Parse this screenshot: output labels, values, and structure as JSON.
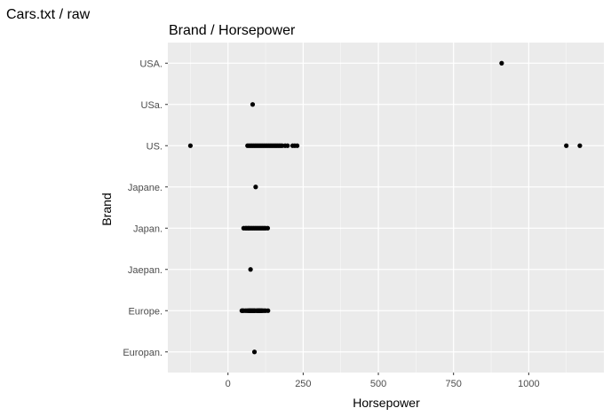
{
  "page": {
    "title": "Cars.txt / raw"
  },
  "chart_data": {
    "type": "scatter",
    "title": "Brand / Horsepower",
    "xlabel": "Horsepower",
    "ylabel": "Brand",
    "xlim": [
      -200,
      1250
    ],
    "x_ticks": [
      0,
      250,
      500,
      750,
      1000
    ],
    "x_tick_labels": [
      "0",
      "250",
      "500",
      "750",
      "1000"
    ],
    "categories": [
      "Europan.",
      "Europe.",
      "Jaepan.",
      "Japan.",
      "Japane.",
      "US.",
      "USa.",
      "USA."
    ],
    "grid": true,
    "points": [
      {
        "brand": "USA.",
        "x": 910
      },
      {
        "brand": "USa.",
        "x": 82
      },
      {
        "brand": "US.",
        "x": -125
      },
      {
        "brand": "US.",
        "x": 65
      },
      {
        "brand": "US.",
        "x": 70
      },
      {
        "brand": "US.",
        "x": 75
      },
      {
        "brand": "US.",
        "x": 80
      },
      {
        "brand": "US.",
        "x": 85
      },
      {
        "brand": "US.",
        "x": 90
      },
      {
        "brand": "US.",
        "x": 95
      },
      {
        "brand": "US.",
        "x": 100
      },
      {
        "brand": "US.",
        "x": 105
      },
      {
        "brand": "US.",
        "x": 110
      },
      {
        "brand": "US.",
        "x": 115
      },
      {
        "brand": "US.",
        "x": 120
      },
      {
        "brand": "US.",
        "x": 125
      },
      {
        "brand": "US.",
        "x": 130
      },
      {
        "brand": "US.",
        "x": 135
      },
      {
        "brand": "US.",
        "x": 140
      },
      {
        "brand": "US.",
        "x": 145
      },
      {
        "brand": "US.",
        "x": 150
      },
      {
        "brand": "US.",
        "x": 155
      },
      {
        "brand": "US.",
        "x": 160
      },
      {
        "brand": "US.",
        "x": 165
      },
      {
        "brand": "US.",
        "x": 170
      },
      {
        "brand": "US.",
        "x": 175
      },
      {
        "brand": "US.",
        "x": 180
      },
      {
        "brand": "US.",
        "x": 190
      },
      {
        "brand": "US.",
        "x": 198
      },
      {
        "brand": "US.",
        "x": 215
      },
      {
        "brand": "US.",
        "x": 222
      },
      {
        "brand": "US.",
        "x": 230
      },
      {
        "brand": "US.",
        "x": 1125
      },
      {
        "brand": "US.",
        "x": 1170
      },
      {
        "brand": "Japane.",
        "x": 92
      },
      {
        "brand": "Japan.",
        "x": 52
      },
      {
        "brand": "Japan.",
        "x": 58
      },
      {
        "brand": "Japan.",
        "x": 62
      },
      {
        "brand": "Japan.",
        "x": 67
      },
      {
        "brand": "Japan.",
        "x": 70
      },
      {
        "brand": "Japan.",
        "x": 75
      },
      {
        "brand": "Japan.",
        "x": 80
      },
      {
        "brand": "Japan.",
        "x": 85
      },
      {
        "brand": "Japan.",
        "x": 90
      },
      {
        "brand": "Japan.",
        "x": 95
      },
      {
        "brand": "Japan.",
        "x": 100
      },
      {
        "brand": "Japan.",
        "x": 105
      },
      {
        "brand": "Japan.",
        "x": 110
      },
      {
        "brand": "Japan.",
        "x": 115
      },
      {
        "brand": "Japan.",
        "x": 120
      },
      {
        "brand": "Japan.",
        "x": 125
      },
      {
        "brand": "Japan.",
        "x": 132
      },
      {
        "brand": "Jaepan.",
        "x": 75
      },
      {
        "brand": "Europe.",
        "x": 46
      },
      {
        "brand": "Europe.",
        "x": 48
      },
      {
        "brand": "Europe.",
        "x": 52
      },
      {
        "brand": "Europe.",
        "x": 58
      },
      {
        "brand": "Europe.",
        "x": 63
      },
      {
        "brand": "Europe.",
        "x": 67
      },
      {
        "brand": "Europe.",
        "x": 70
      },
      {
        "brand": "Europe.",
        "x": 71
      },
      {
        "brand": "Europe.",
        "x": 74
      },
      {
        "brand": "Europe.",
        "x": 76
      },
      {
        "brand": "Europe.",
        "x": 78
      },
      {
        "brand": "Europe.",
        "x": 81
      },
      {
        "brand": "Europe.",
        "x": 83
      },
      {
        "brand": "Europe.",
        "x": 86
      },
      {
        "brand": "Europe.",
        "x": 88
      },
      {
        "brand": "Europe.",
        "x": 90
      },
      {
        "brand": "Europe.",
        "x": 95
      },
      {
        "brand": "Europe.",
        "x": 97
      },
      {
        "brand": "Europe.",
        "x": 100
      },
      {
        "brand": "Europe.",
        "x": 102
      },
      {
        "brand": "Europe.",
        "x": 103
      },
      {
        "brand": "Europe.",
        "x": 105
      },
      {
        "brand": "Europe.",
        "x": 107
      },
      {
        "brand": "Europe.",
        "x": 110
      },
      {
        "brand": "Europe.",
        "x": 112
      },
      {
        "brand": "Europe.",
        "x": 115
      },
      {
        "brand": "Europe.",
        "x": 120
      },
      {
        "brand": "Europe.",
        "x": 125
      },
      {
        "brand": "Europe.",
        "x": 133
      },
      {
        "brand": "Europan.",
        "x": 88
      }
    ],
    "colors": {
      "panel": "#ebebeb",
      "grid_major": "#ffffff",
      "point": "#000000"
    }
  }
}
